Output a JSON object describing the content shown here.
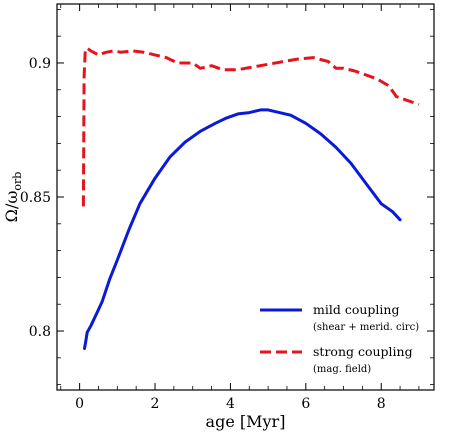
{
  "chart_data": {
    "type": "line",
    "xlabel": "age [Myr]",
    "ylabel_main": "Ω/ω",
    "ylabel_sub": "orb",
    "xlim": [
      -0.6,
      9.4
    ],
    "ylim": [
      0.778,
      0.922
    ],
    "xticks": [
      0,
      2,
      4,
      6,
      8
    ],
    "xtick_labels": [
      "0",
      "2",
      "4",
      "6",
      "8"
    ],
    "yticks": [
      0.8,
      0.85,
      0.9
    ],
    "ytick_labels": [
      "0.8",
      "0.85",
      "0.9"
    ],
    "grid": false,
    "legend_position": "bottom-right",
    "series": [
      {
        "name": "mild coupling",
        "note": "(shear + merid. circ)",
        "color": "#0a1ad8",
        "style": "solid",
        "x": [
          0.13,
          0.16,
          0.2,
          0.3,
          0.45,
          0.6,
          0.8,
          1.0,
          1.3,
          1.6,
          2.0,
          2.4,
          2.8,
          3.2,
          3.6,
          3.9,
          4.2,
          4.5,
          4.8,
          5.0,
          5.3,
          5.6,
          6.0,
          6.4,
          6.8,
          7.2,
          7.6,
          8.0,
          8.3,
          8.5
        ],
        "y": [
          0.7935,
          0.796,
          0.7995,
          0.802,
          0.8065,
          0.811,
          0.8195,
          0.8265,
          0.8375,
          0.8475,
          0.857,
          0.865,
          0.8705,
          0.8745,
          0.8775,
          0.8795,
          0.881,
          0.8815,
          0.8825,
          0.8825,
          0.8815,
          0.8805,
          0.8775,
          0.8735,
          0.8685,
          0.8625,
          0.855,
          0.8475,
          0.8445,
          0.8415
        ]
      },
      {
        "name": "strong coupling",
        "note": "(mag. field)",
        "color": "#e5141c",
        "style": "dashed",
        "x": [
          0.1,
          0.12,
          0.15,
          0.2,
          0.3,
          0.5,
          0.7,
          0.9,
          1.1,
          1.4,
          1.7,
          2.0,
          2.3,
          2.6,
          3.0,
          3.2,
          3.5,
          3.8,
          4.2,
          4.6,
          5.0,
          5.4,
          5.8,
          6.2,
          6.6,
          6.8,
          7.0,
          7.3,
          7.6,
          7.9,
          8.2,
          8.4,
          8.6,
          9.0
        ],
        "y": [
          0.8465,
          0.895,
          0.905,
          0.9055,
          0.9045,
          0.903,
          0.904,
          0.9045,
          0.904,
          0.9045,
          0.904,
          0.903,
          0.902,
          0.9,
          0.9,
          0.898,
          0.899,
          0.8975,
          0.8975,
          0.8985,
          0.8995,
          0.9005,
          0.9015,
          0.902,
          0.9005,
          0.898,
          0.898,
          0.897,
          0.8955,
          0.894,
          0.8915,
          0.8875,
          0.8865,
          0.8845
        ]
      }
    ]
  }
}
